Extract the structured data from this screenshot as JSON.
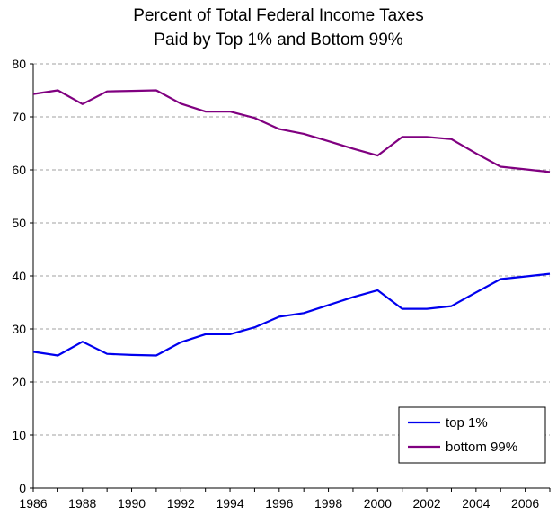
{
  "chart_data": {
    "type": "line",
    "title_line1": "Percent of Total Federal Income Taxes",
    "title_line2": "Paid by Top 1% and Bottom 99%",
    "xlabel": "",
    "ylabel": "",
    "xlim": [
      1986,
      2007
    ],
    "ylim": [
      0,
      80
    ],
    "y_ticks": [
      0,
      10,
      20,
      30,
      40,
      50,
      60,
      70,
      80
    ],
    "x_ticks": [
      1986,
      1988,
      1990,
      1992,
      1994,
      1996,
      1998,
      2000,
      2002,
      2004,
      2006
    ],
    "grid": "horizontal dashed",
    "legend_position": "bottom-right",
    "x": [
      1986,
      1987,
      1988,
      1989,
      1990,
      1991,
      1992,
      1993,
      1994,
      1995,
      1996,
      1997,
      1998,
      1999,
      2000,
      2001,
      2002,
      2003,
      2004,
      2005,
      2006,
      2007
    ],
    "series": [
      {
        "name": "top 1%",
        "color": "#0000ee",
        "values": [
          25.7,
          25.0,
          27.6,
          25.3,
          25.1,
          25.0,
          27.5,
          29.0,
          29.0,
          30.3,
          32.3,
          33.0,
          34.5,
          36.0,
          37.3,
          33.8,
          33.8,
          34.3,
          36.9,
          39.4,
          39.9,
          40.4
        ]
      },
      {
        "name": "bottom 99%",
        "color": "#800080",
        "values": [
          74.3,
          75.0,
          72.4,
          74.8,
          74.9,
          75.0,
          72.5,
          71.0,
          71.0,
          69.8,
          67.7,
          66.8,
          65.4,
          64.0,
          62.7,
          66.2,
          66.2,
          65.8,
          63.1,
          60.6,
          60.1,
          59.6
        ]
      }
    ]
  }
}
